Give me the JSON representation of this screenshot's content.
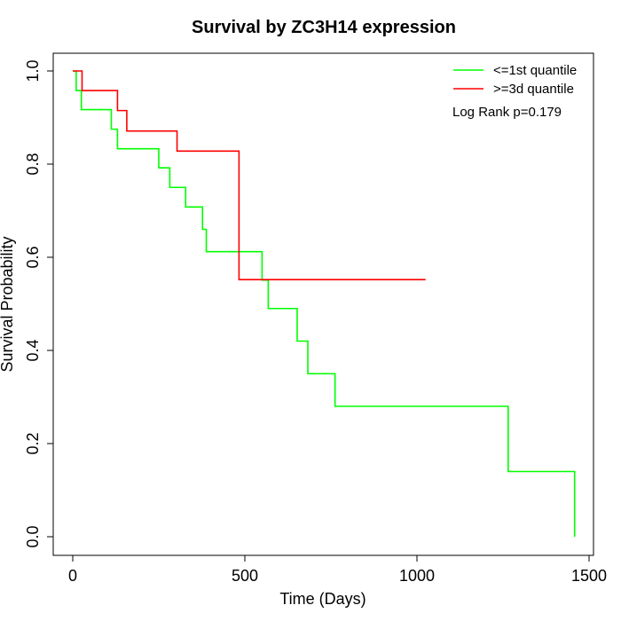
{
  "chart_data": {
    "type": "line",
    "step": true,
    "title": "Survival by ZC3H14 expression",
    "xlabel": "Time (Days)",
    "ylabel": "Survival Probability",
    "xlim": [
      0,
      1500
    ],
    "ylim": [
      0,
      1
    ],
    "xticks": [
      0,
      500,
      1000,
      1500
    ],
    "xtick_labels": [
      "0",
      "500",
      "1000",
      "1500"
    ],
    "yticks": [
      0,
      0.2,
      0.4,
      0.6,
      0.8,
      1
    ],
    "ytick_labels": [
      "0.0",
      "0.2",
      "0.4",
      "0.6",
      "0.8",
      "1.0"
    ],
    "grid": false,
    "legend_position": "top-right",
    "annotation": "Log Rank p=0.179",
    "series": [
      {
        "name": "<=1st quantile",
        "color": "#00ff00",
        "x": [
          0,
          10,
          25,
          112,
          130,
          250,
          282,
          328,
          377,
          388,
          550,
          568,
          652,
          683,
          762,
          1265,
          1458,
          1458
        ],
        "y": [
          1,
          0.958,
          0.917,
          0.875,
          0.833,
          0.792,
          0.75,
          0.708,
          0.66,
          0.612,
          0.551,
          0.49,
          0.42,
          0.35,
          0.28,
          0.14,
          0.14,
          0
        ]
      },
      {
        "name": ">=3d quantile",
        "color": "#ff0000",
        "x": [
          0,
          27,
          130,
          157,
          303,
          483,
          1025
        ],
        "y": [
          1,
          0.958,
          0.915,
          0.871,
          0.828,
          0.552,
          0.552
        ]
      }
    ]
  }
}
